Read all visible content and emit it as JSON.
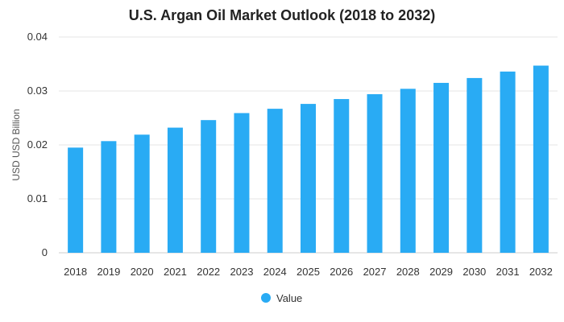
{
  "chart_data": {
    "type": "bar",
    "title": "U.S. Argan Oil Market Outlook (2018 to 2032)",
    "xlabel": "",
    "ylabel": "USD USD Billion",
    "categories": [
      "2018",
      "2019",
      "2020",
      "2021",
      "2022",
      "2023",
      "2024",
      "2025",
      "2026",
      "2027",
      "2028",
      "2029",
      "2030",
      "2031",
      "2032"
    ],
    "series": [
      {
        "name": "Value",
        "color": "#29abf4",
        "values": [
          0.0195,
          0.0207,
          0.0219,
          0.0232,
          0.0246,
          0.0259,
          0.0267,
          0.0276,
          0.0285,
          0.0294,
          0.0304,
          0.0315,
          0.0324,
          0.0336,
          0.0347
        ]
      }
    ],
    "ylim": [
      0,
      0.04
    ],
    "yticks": [
      "0",
      "0.01",
      "0.02",
      "0.03",
      "0.04"
    ],
    "ytick_values": [
      0,
      0.01,
      0.02,
      0.03,
      0.04
    ],
    "grid": true,
    "legend_position": "bottom-center"
  }
}
